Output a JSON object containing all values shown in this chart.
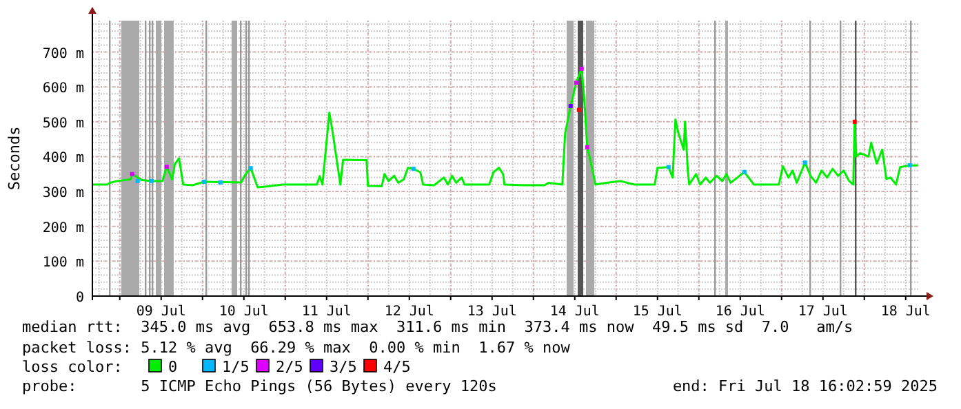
{
  "chart_data": {
    "type": "line",
    "ylabel": "Seconds",
    "legend_title": "loss color:",
    "legend": "bottom",
    "grid": true,
    "marker": "square",
    "xlim": [
      "2025-07-08T16:03",
      "2025-07-18T16:03"
    ],
    "xticks": [
      {
        "value": "2025-07-09",
        "label": null
      },
      {
        "value": "2025-07-09T12:00",
        "label": "09 Jul"
      },
      {
        "value": "2025-07-10",
        "label": null
      },
      {
        "value": "2025-07-10T12:00",
        "label": "10 Jul"
      },
      {
        "value": "2025-07-11",
        "label": null
      },
      {
        "value": "2025-07-11T12:00",
        "label": "11 Jul"
      },
      {
        "value": "2025-07-12",
        "label": null
      },
      {
        "value": "2025-07-12T12:00",
        "label": "12 Jul"
      },
      {
        "value": "2025-07-13",
        "label": null
      },
      {
        "value": "2025-07-13T12:00",
        "label": "13 Jul"
      },
      {
        "value": "2025-07-14",
        "label": null
      },
      {
        "value": "2025-07-14T12:00",
        "label": "14 Jul"
      },
      {
        "value": "2025-07-15",
        "label": null
      },
      {
        "value": "2025-07-15T12:00",
        "label": "15 Jul"
      },
      {
        "value": "2025-07-16",
        "label": null
      },
      {
        "value": "2025-07-16T12:00",
        "label": "16 Jul"
      },
      {
        "value": "2025-07-17",
        "label": null
      },
      {
        "value": "2025-07-17T12:00",
        "label": "17 Jul"
      },
      {
        "value": "2025-07-18",
        "label": null
      },
      {
        "value": "2025-07-18T12:00",
        "label": "18 Jul"
      }
    ],
    "ylim": [
      0,
      790
    ],
    "yticks": [
      0,
      {
        "value": 100,
        "label": "100 m"
      },
      {
        "value": 200,
        "label": "200 m"
      },
      {
        "value": 300,
        "label": "300 m"
      },
      {
        "value": 400,
        "label": "400 m"
      },
      {
        "value": 500,
        "label": "500 m"
      },
      {
        "value": 600,
        "label": "600 m"
      },
      {
        "value": 700,
        "label": "700 m"
      }
    ],
    "series": [
      {
        "name": "0",
        "color": "#00ee00",
        "type": "line",
        "marker": "none",
        "x": [
          "2025-07-08T16:03",
          "2025-07-08T20:24",
          "2025-07-08T21:12",
          "2025-07-08T23:12",
          "2025-07-09T03:12",
          "2025-07-09T03:36",
          "2025-07-09T05:12",
          "2025-07-09T06:24",
          "2025-07-09T09:12",
          "2025-07-09T12:24",
          "2025-07-09T13:36",
          "2025-07-09T15:12",
          "2025-07-09T16:00",
          "2025-07-09T17:12",
          "2025-07-09T18:24",
          "2025-07-09T21:12",
          "2025-07-10T00:24",
          "2025-07-10T11:12",
          "2025-07-10T12:24",
          "2025-07-10T14:00",
          "2025-07-10T16:00",
          "2025-07-10T19:12",
          "2025-07-10T23:12",
          "2025-07-11T09:12",
          "2025-07-11T10:00",
          "2025-07-11T10:48",
          "2025-07-11T12:48",
          "2025-07-11T13:36",
          "2025-07-11T14:48",
          "2025-07-11T16:00",
          "2025-07-11T16:48",
          "2025-07-11T23:36",
          "2025-07-12T00:00",
          "2025-07-12T04:00",
          "2025-07-12T04:48",
          "2025-07-12T06:00",
          "2025-07-12T07:36",
          "2025-07-12T08:48",
          "2025-07-12T10:24",
          "2025-07-12T11:36",
          "2025-07-12T13:12",
          "2025-07-12T15:12",
          "2025-07-12T16:00",
          "2025-07-12T19:12",
          "2025-07-12T22:00",
          "2025-07-12T23:12",
          "2025-07-13T00:24",
          "2025-07-13T01:36",
          "2025-07-13T03:12",
          "2025-07-13T04:00",
          "2025-07-13T11:12",
          "2025-07-13T12:24",
          "2025-07-13T14:00",
          "2025-07-13T15:12",
          "2025-07-13T15:36",
          "2025-07-13T21:12",
          "2025-07-14T03:12",
          "2025-07-14T04:24",
          "2025-07-14T08:24",
          "2025-07-14T09:12",
          "2025-07-14T10:48",
          "2025-07-14T12:24",
          "2025-07-14T14:00",
          "2025-07-14T14:48",
          "2025-07-14T15:36",
          "2025-07-14T16:24",
          "2025-07-14T18:00",
          "2025-07-14T21:12",
          "2025-07-15T01:12",
          "2025-07-15T05:12",
          "2025-07-15T11:12",
          "2025-07-15T12:00",
          "2025-07-15T15:12",
          "2025-07-15T16:24",
          "2025-07-15T17:12",
          "2025-07-15T18:00",
          "2025-07-15T19:36",
          "2025-07-15T20:00",
          "2025-07-15T20:48",
          "2025-07-15T21:12",
          "2025-07-15T23:12",
          "2025-07-16T00:24",
          "2025-07-16T02:00",
          "2025-07-16T03:12",
          "2025-07-16T05:12",
          "2025-07-16T06:48",
          "2025-07-16T08:00",
          "2025-07-16T09:12",
          "2025-07-16T11:12",
          "2025-07-16T13:12",
          "2025-07-16T15:12",
          "2025-07-16T16:00",
          "2025-07-16T23:12",
          "2025-07-17T00:24",
          "2025-07-17T02:00",
          "2025-07-17T03:12",
          "2025-07-17T04:24",
          "2025-07-17T06:48",
          "2025-07-17T08:24",
          "2025-07-17T10:00",
          "2025-07-17T11:36",
          "2025-07-17T13:12",
          "2025-07-17T14:48",
          "2025-07-17T16:24",
          "2025-07-17T18:00",
          "2025-07-17T19:36",
          "2025-07-17T20:48",
          "2025-07-17T21:12",
          "2025-07-17T21:36",
          "2025-07-17T22:48",
          "2025-07-18T01:12",
          "2025-07-18T02:00",
          "2025-07-18T03:36",
          "2025-07-18T05:12",
          "2025-07-18T06:24",
          "2025-07-18T07:36",
          "2025-07-18T09:12",
          "2025-07-18T10:24",
          "2025-07-18T13:12",
          "2025-07-18T15:36"
        ],
        "values": [
          320,
          320,
          325,
          330,
          335,
          350,
          340,
          333,
          330,
          330,
          371,
          335,
          379,
          395,
          320,
          318,
          328,
          326,
          348,
          367,
          312,
          315,
          320,
          320,
          344,
          320,
          526,
          480,
          400,
          320,
          391,
          390,
          316,
          315,
          350,
          330,
          345,
          325,
          335,
          368,
          365,
          355,
          320,
          318,
          340,
          320,
          345,
          325,
          340,
          320,
          320,
          355,
          368,
          350,
          320,
          318,
          318,
          325,
          320,
          466,
          545,
          612,
          652,
          560,
          427,
          395,
          320,
          325,
          330,
          320,
          320,
          368,
          370,
          340,
          506,
          470,
          420,
          500,
          360,
          320,
          350,
          320,
          340,
          325,
          345,
          330,
          350,
          325,
          340,
          356,
          330,
          320,
          320,
          372,
          340,
          360,
          325,
          383,
          345,
          325,
          360,
          340,
          365,
          345,
          360,
          330,
          320,
          500,
          400,
          410,
          400,
          440,
          380,
          420,
          336,
          340,
          320,
          370,
          375,
          375
        ]
      },
      {
        "name": "1/5",
        "color": "#00b8ff",
        "type": "scatter",
        "x": [
          "2025-07-09T05:12",
          "2025-07-09T09:12",
          "2025-07-10T00:24",
          "2025-07-10T05:12",
          "2025-07-10T14:00",
          "2025-07-12T13:12",
          "2025-07-15T15:12",
          "2025-07-16T13:12",
          "2025-07-17T06:48",
          "2025-07-18T13:12"
        ],
        "values": [
          330,
          330,
          328,
          326,
          367,
          365,
          370,
          356,
          383,
          375
        ]
      },
      {
        "name": "2/5",
        "color": "#dd00ff",
        "type": "scatter",
        "x": [
          "2025-07-09T03:36",
          "2025-07-09T13:36",
          "2025-07-14T12:24",
          "2025-07-14T14:00",
          "2025-07-14T15:36"
        ],
        "values": [
          350,
          371,
          612,
          652,
          427
        ]
      },
      {
        "name": "3/5",
        "color": "#6000ff",
        "type": "scatter",
        "x": [
          "2025-07-14T10:48"
        ],
        "values": [
          545
        ]
      },
      {
        "name": "4/5",
        "color": "#ff0000",
        "type": "scatter",
        "x": [
          "2025-07-14T13:12",
          "2025-07-17T21:12"
        ],
        "values": [
          534,
          500
        ]
      }
    ],
    "ref_lines": [
      {
        "axis": "x",
        "value": "2025-07-08T20:51",
        "color": "#999999"
      },
      {
        "axis": "x",
        "value": "2025-07-09T07:15",
        "color": "#999999"
      },
      {
        "axis": "x",
        "value": "2025-07-09T08:27",
        "color": "#999999"
      },
      {
        "axis": "x",
        "value": "2025-07-09T09:15",
        "color": "#999999"
      },
      {
        "axis": "x",
        "value": "2025-07-10T00:51",
        "color": "#999999"
      },
      {
        "axis": "x",
        "value": "2025-07-10T10:51",
        "color": "#999999"
      },
      {
        "axis": "x",
        "value": "2025-07-10T12:27",
        "color": "#999999"
      },
      {
        "axis": "x",
        "value": "2025-07-10T13:15",
        "color": "#999999"
      },
      {
        "axis": "x",
        "value": "2025-07-16T04:27",
        "color": "#999999"
      },
      {
        "axis": "x",
        "value": "2025-07-17T08:03",
        "color": "#999999"
      },
      {
        "axis": "x",
        "value": "2025-07-17T16:51",
        "color": "#999999"
      },
      {
        "axis": "x",
        "value": "2025-07-17T21:15",
        "color": "#555555"
      },
      {
        "axis": "x",
        "value": "2025-07-18T13:15",
        "color": "#999999"
      }
    ],
    "bands": [
      {
        "axis": "x",
        "from": "2025-07-09T00:27",
        "to": "2025-07-09T05:39",
        "color": "#aaaaaa"
      },
      {
        "axis": "x",
        "from": "2025-07-09T10:27",
        "to": "2025-07-09T12:03",
        "color": "#aaaaaa"
      },
      {
        "axis": "x",
        "from": "2025-07-09T12:51",
        "to": "2025-07-09T15:39",
        "color": "#aaaaaa"
      },
      {
        "axis": "x",
        "from": "2025-07-10T08:27",
        "to": "2025-07-10T10:03",
        "color": "#aaaaaa"
      },
      {
        "axis": "x",
        "from": "2025-07-14T09:39",
        "to": "2025-07-14T11:39",
        "color": "#aaaaaa"
      },
      {
        "axis": "x",
        "from": "2025-07-14T12:51",
        "to": "2025-07-14T14:27",
        "color": "#555555"
      },
      {
        "axis": "x",
        "from": "2025-07-14T15:15",
        "to": "2025-07-14T17:39",
        "color": "#aaaaaa"
      },
      {
        "axis": "x",
        "from": "2025-07-16T07:39",
        "to": "2025-07-16T08:27",
        "color": "#aaaaaa"
      }
    ],
    "annotations": [
      "median rtt:  345.0 ms avg  653.8 ms max  311.6 ms min  373.4 ms now  49.5 ms sd  7.0   am/s",
      "packet loss: 5.12 % avg  66.29 % max  0.00 % min  1.67 % now",
      "probe:       5 ICMP Echo Pings (56 Bytes) every 120s",
      "end: Fri Jul 18 16:02:59 2025"
    ]
  }
}
